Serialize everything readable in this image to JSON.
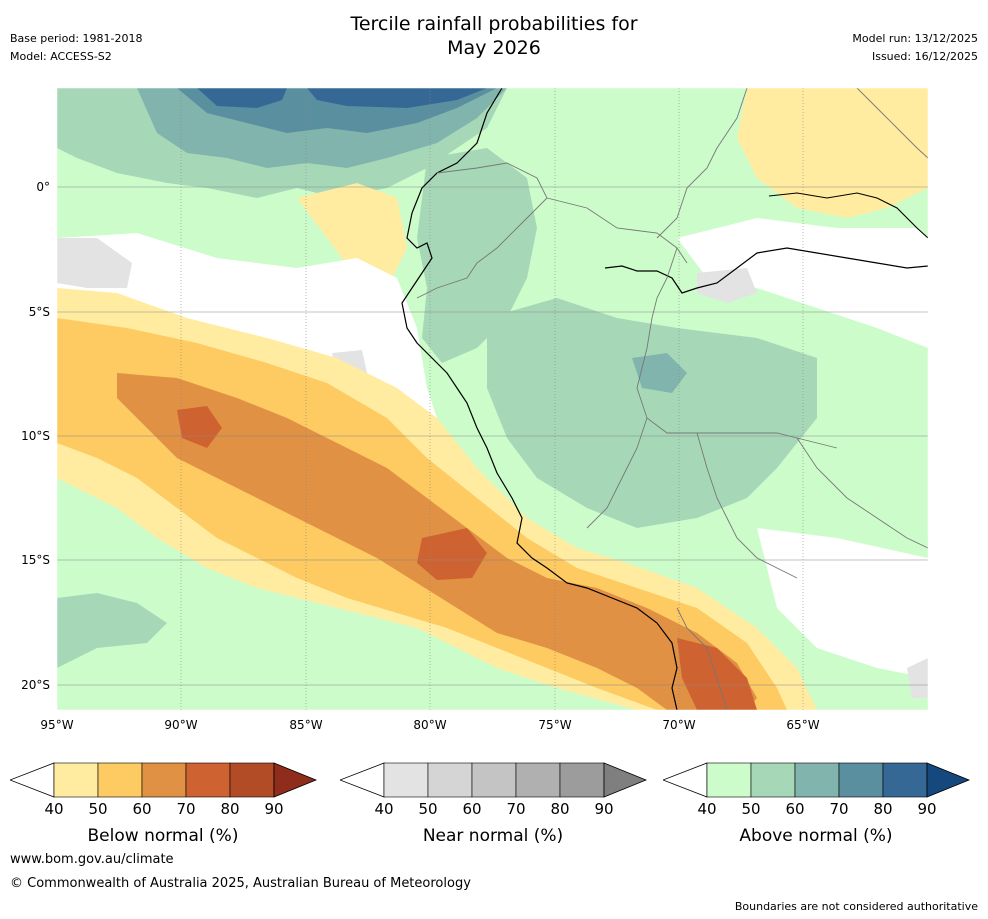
{
  "title_line1": "Tercile rainfall probabilities for",
  "title_line2": "May 2026",
  "base_period": "Base period: 1981-2018",
  "model": "Model: ACCESS-S2",
  "model_run": "Model run: 13/12/2025",
  "issued": "Issued: 16/12/2025",
  "lat_labels": [
    "0°",
    "5°S",
    "10°S",
    "15°S",
    "20°S"
  ],
  "lon_labels": [
    "95°W",
    "90°W",
    "85°W",
    "80°W",
    "75°W",
    "70°W",
    "65°W"
  ],
  "colorbars": [
    {
      "title": "Below normal (%)",
      "ticks": [
        "40",
        "50",
        "60",
        "70",
        "80",
        "90"
      ],
      "colors": [
        "#ffeca0",
        "#fdcb62",
        "#e09143",
        "#cf6231",
        "#b24c26",
        "#8f2c1c"
      ]
    },
    {
      "title": "Near normal (%)",
      "ticks": [
        "40",
        "50",
        "60",
        "70",
        "80",
        "90"
      ],
      "colors": [
        "#e3e3e3",
        "#d5d5d5",
        "#c4c4c4",
        "#b0b0b0",
        "#9c9c9c",
        "#7f7f7f"
      ]
    },
    {
      "title": "Above normal (%)",
      "ticks": [
        "40",
        "50",
        "60",
        "70",
        "80",
        "90"
      ],
      "colors": [
        "#ccfcca",
        "#a6d8b8",
        "#80b4ad",
        "#5a8fa0",
        "#356895",
        "#15497e"
      ]
    }
  ],
  "footer_url": "www.bom.gov.au/climate",
  "footer_copy": "© Commonwealth of Australia 2025, Australian Bureau of Meteorology",
  "footer_note": "Boundaries are not considered authoritative"
}
